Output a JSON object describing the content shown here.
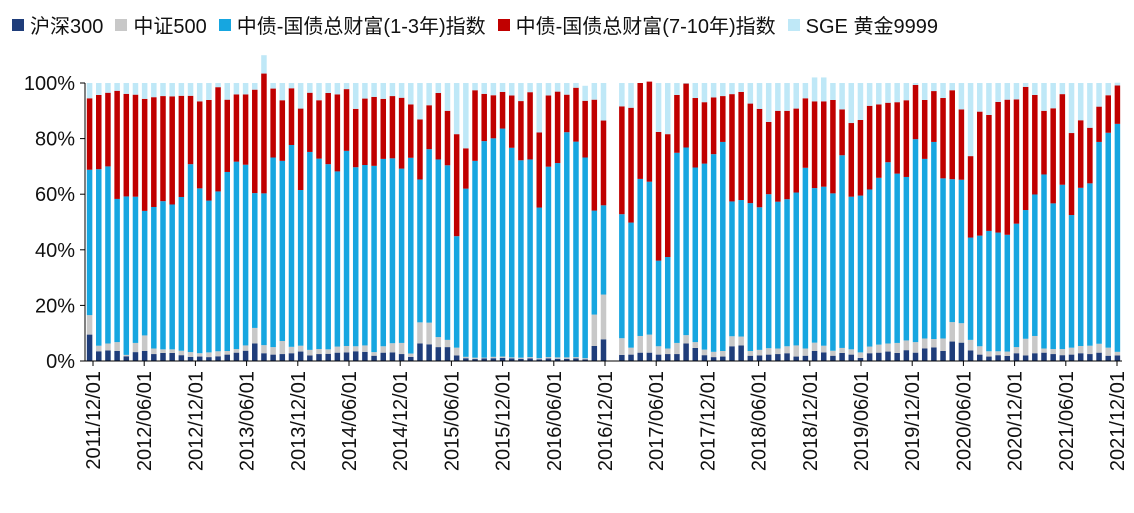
{
  "chart_data": {
    "type": "bar",
    "stacked": true,
    "y_ticks": [
      "0%",
      "20%",
      "40%",
      "60%",
      "80%",
      "100%"
    ],
    "ylim": [
      0,
      100
    ],
    "x_tick_labels": [
      "2011/12/01",
      "2012/06/01",
      "2012/12/01",
      "2013/06/01",
      "2013/12/01",
      "2014/06/01",
      "2014/12/01",
      "2015/06/01",
      "2015/12/01",
      "2016/06/01",
      "2016/12/01",
      "2017/06/01",
      "2017/12/01",
      "2018/06/01",
      "2018/12/01",
      "2019/06/01",
      "2019/12/01",
      "2020/06/01",
      "2020/12/01",
      "2021/06/01",
      "2021/12/01"
    ],
    "series": [
      {
        "name": "沪深300",
        "color": "#1f3d7a",
        "values": [
          9.5,
          3.5,
          3.8,
          3.6,
          1.7,
          3.2,
          3.6,
          2.5,
          2.9,
          2.9,
          2.1,
          1.5,
          1.6,
          1.4,
          1.7,
          2.3,
          3.0,
          3.7,
          6.3,
          2.8,
          2.3,
          2.5,
          2.8,
          3.4,
          2.0,
          2.5,
          2.6,
          3.0,
          3.1,
          3.5,
          3.3,
          1.9,
          3.0,
          3.1,
          2.5,
          1.5,
          6.3,
          6.0,
          5.0,
          5.0,
          2.0,
          1.0,
          0.7,
          0.9,
          1.0,
          1.1,
          0.9,
          0.8,
          0.9,
          0.6,
          0.9,
          0.8,
          0.8,
          0.9,
          0.6,
          5.4,
          7.8,
          0.0,
          2.2,
          2.3,
          3.0,
          3.0,
          2.3,
          2.5,
          2.5,
          6.3,
          4.7,
          2.1,
          1.4,
          1.6,
          5.3,
          5.6,
          1.9,
          2.0,
          2.3,
          2.5,
          2.8,
          1.6,
          1.9,
          3.6,
          3.1,
          1.9,
          2.9,
          2.3,
          1.1,
          2.8,
          3.0,
          3.4,
          2.9,
          3.9,
          3.0,
          4.5,
          4.9,
          3.6,
          7.0,
          6.6,
          3.8,
          2.3,
          1.6,
          2.1,
          1.8,
          2.8,
          2.0,
          2.8,
          3.0,
          2.5,
          2.1,
          2.3,
          2.8,
          2.5,
          3.0,
          1.9,
          2.0
        ]
      },
      {
        "name": "中证500",
        "color": "#c8c8c8",
        "values": [
          7.0,
          2.0,
          2.5,
          3.2,
          0.5,
          3.3,
          5.6,
          2.0,
          1.3,
          1.3,
          1.6,
          1.7,
          1.2,
          1.7,
          1.8,
          1.3,
          1.3,
          1.9,
          5.6,
          2.9,
          2.7,
          4.7,
          2.3,
          2.1,
          2.0,
          1.8,
          1.6,
          2.2,
          2.3,
          1.8,
          2.3,
          1.3,
          2.3,
          3.3,
          4.0,
          1.2,
          7.6,
          7.8,
          3.6,
          2.6,
          2.8,
          0.5,
          0.5,
          0.3,
          0.5,
          0.5,
          0.4,
          0.4,
          0.5,
          0.4,
          0.5,
          0.5,
          0.5,
          0.5,
          0.4,
          11.3,
          16.1,
          0.0,
          6.0,
          2.5,
          6.0,
          6.5,
          3.0,
          2.0,
          4.0,
          3.0,
          2.1,
          2.0,
          1.9,
          2.0,
          3.6,
          3.2,
          1.7,
          2.0,
          2.3,
          2.0,
          2.5,
          4.0,
          2.6,
          3.0,
          2.4,
          1.8,
          1.8,
          1.9,
          2.0,
          2.4,
          2.9,
          2.9,
          3.6,
          3.5,
          3.8,
          3.6,
          3.0,
          4.5,
          7.0,
          7.0,
          3.8,
          3.0,
          1.9,
          1.4,
          1.6,
          2.2,
          6.0,
          6.2,
          1.5,
          1.8,
          2.2,
          2.5,
          2.6,
          3.0,
          3.2,
          2.9,
          1.3
        ]
      },
      {
        "name": "中债-国债总财富(1-3年)指数",
        "color": "#16a6e0",
        "values": [
          52.3,
          63.5,
          63.7,
          51.5,
          57.0,
          52.6,
          44.8,
          50.9,
          53.3,
          52.1,
          55.3,
          67.6,
          59.3,
          54.6,
          57.5,
          64.4,
          67.4,
          65.0,
          48.5,
          54.6,
          68.2,
          64.8,
          72.6,
          56.0,
          71.2,
          68.5,
          66.6,
          63.0,
          70.2,
          64.4,
          64.9,
          67.0,
          67.4,
          66.5,
          62.7,
          70.4,
          51.4,
          62.4,
          63.9,
          62.8,
          40.1,
          60.5,
          70.8,
          77.9,
          78.6,
          82.0,
          75.4,
          71.0,
          71.1,
          54.2,
          68.5,
          69.9,
          81.0,
          77.5,
          72.2,
          37.4,
          32.1,
          0.0,
          44.6,
          45.0,
          56.5,
          55.0,
          30.8,
          32.9,
          68.4,
          67.5,
          62.8,
          66.9,
          71.1,
          75.2,
          48.5,
          49.1,
          53.2,
          51.3,
          55.4,
          52.8,
          52.9,
          55.0,
          65.0,
          55.6,
          57.2,
          56.6,
          69.3,
          54.9,
          56.4,
          56.5,
          60.0,
          65.2,
          60.9,
          58.8,
          73.0,
          64.6,
          70.9,
          57.6,
          51.4,
          51.6,
          36.8,
          39.8,
          43.3,
          42.7,
          42.0,
          44.4,
          46.3,
          50.9,
          62.6,
          52.4,
          59.1,
          47.7,
          56.9,
          58.4,
          72.6,
          77.3,
          82.0
        ]
      },
      {
        "name": "中债-国债总财富(7-10年)指数",
        "color": "#c00000",
        "values": [
          25.7,
          26.7,
          26.5,
          38.9,
          36.9,
          36.7,
          40.3,
          39.5,
          37.8,
          38.9,
          36.4,
          24.6,
          31.3,
          36.2,
          37.5,
          26.0,
          24.2,
          25.3,
          37.2,
          43.1,
          24.8,
          21.8,
          20.4,
          29.3,
          21.3,
          21.0,
          25.6,
          27.7,
          22.2,
          21.0,
          23.9,
          24.8,
          21.6,
          22.4,
          25.5,
          19.2,
          21.6,
          15.8,
          23.9,
          19.6,
          36.7,
          14.5,
          25.4,
          17.0,
          15.5,
          13.2,
          18.8,
          21.3,
          24.2,
          27.0,
          25.6,
          25.7,
          13.5,
          19.4,
          20.4,
          39.9,
          30.5,
          0.0,
          38.8,
          41.3,
          34.5,
          36.0,
          46.3,
          44.2,
          20.8,
          23.0,
          25.0,
          22.1,
          20.4,
          16.5,
          38.6,
          38.9,
          35.8,
          35.4,
          26.0,
          32.7,
          31.8,
          30.2,
          25.0,
          31.2,
          30.7,
          33.6,
          16.5,
          26.5,
          27.2,
          30.1,
          26.4,
          21.4,
          25.7,
          27.6,
          19.5,
          21.2,
          18.3,
          28.9,
          32.0,
          25.3,
          29.3,
          44.6,
          41.7,
          47.0,
          48.6,
          44.7,
          44.3,
          35.8,
          22.9,
          34.2,
          32.6,
          29.5,
          24.3,
          20.0,
          12.7,
          13.5,
          13.8
        ]
      },
      {
        "name": "SGE 黄金9999",
        "color": "#bfe8f7",
        "values": [
          5.5,
          4.3,
          3.5,
          2.8,
          3.9,
          4.2,
          5.7,
          5.1,
          4.7,
          4.8,
          4.6,
          4.6,
          6.6,
          6.1,
          1.5,
          6.0,
          4.1,
          4.1,
          2.4,
          6.6,
          2.0,
          6.2,
          1.9,
          9.2,
          3.5,
          6.2,
          3.6,
          4.1,
          2.2,
          9.3,
          5.6,
          5.0,
          5.7,
          4.7,
          5.3,
          7.7,
          13.1,
          8.0,
          3.6,
          10.0,
          18.4,
          23.5,
          2.6,
          3.9,
          4.4,
          3.2,
          4.5,
          6.5,
          3.3,
          17.8,
          4.5,
          3.1,
          4.2,
          1.7,
          5.4,
          6.0,
          13.5,
          0.0,
          8.4,
          8.9,
          0.0,
          -0.5,
          17.6,
          18.4,
          4.3,
          0.2,
          5.4,
          6.9,
          5.2,
          4.7,
          4.0,
          3.2,
          7.4,
          9.3,
          14.0,
          10.0,
          10.0,
          9.2,
          5.5,
          8.6,
          8.6,
          6.1,
          9.5,
          14.4,
          13.3,
          8.2,
          7.7,
          7.1,
          6.9,
          6.2,
          0.7,
          6.1,
          2.9,
          5.4,
          2.6,
          9.5,
          26.3,
          10.3,
          11.5,
          6.8,
          6.0,
          5.9,
          1.4,
          4.3,
          10.0,
          9.1,
          4.0,
          18.0,
          13.4,
          16.1,
          8.5,
          4.4,
          1.0
        ]
      }
    ]
  }
}
